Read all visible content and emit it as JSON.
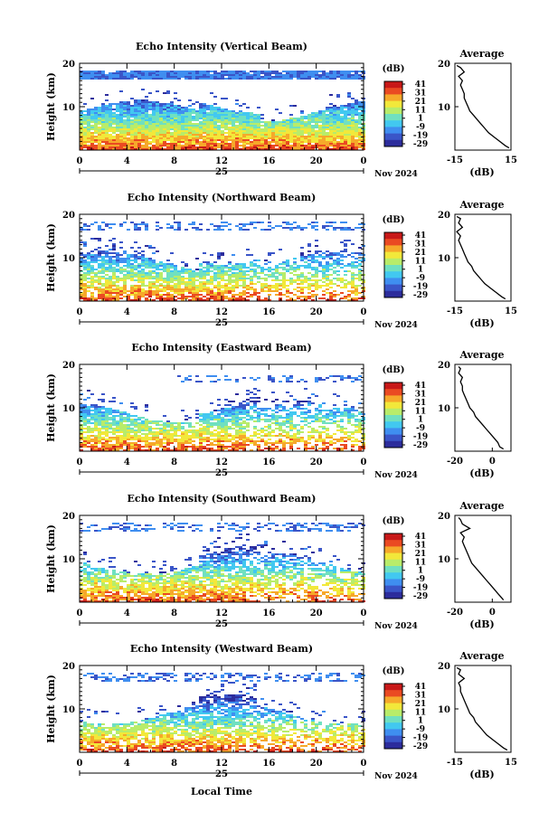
{
  "shared": {
    "x_ticks": [
      "0",
      "4",
      "8",
      "12",
      "16",
      "20",
      "0"
    ],
    "date_label": "25",
    "month_year": "Nov 2024",
    "y_label": "Height (km)",
    "y_ticks": [
      "20",
      "10"
    ],
    "colorbar_title": "(dB)",
    "colorbar_ticks": [
      "41",
      "31",
      "21",
      "11",
      "1",
      "-9",
      "-19",
      "-29"
    ],
    "avg_title": "Average",
    "avg_xlabel": "(dB)",
    "xlabel_bottom": "Local Time"
  },
  "colors": {
    "colormap": [
      "#2c2c9c",
      "#3a55c8",
      "#3f8ef0",
      "#42c8f0",
      "#70e0c0",
      "#b8ec6a",
      "#f2e83a",
      "#f6a82a",
      "#ea4a22",
      "#c81818"
    ]
  },
  "chart_data": [
    {
      "type": "heatmap",
      "title": "Echo Intensity (Vertical Beam)",
      "x_unit_hours": [
        0,
        24
      ],
      "ylim": [
        0,
        20
      ],
      "clim": [
        -29,
        41
      ],
      "avg_profile": {
        "xlim": [
          -15,
          15
        ],
        "x_ticks": [
          "-15",
          "15"
        ],
        "height_km": [
          0.5,
          1,
          2,
          3,
          4,
          5,
          6,
          7,
          8,
          9,
          10,
          11,
          12,
          13,
          14,
          15,
          16,
          17,
          18,
          19,
          19.5
        ],
        "values_db": [
          14,
          12,
          9,
          6,
          3,
          1,
          -1,
          -3,
          -5,
          -7,
          -8,
          -9,
          -10,
          -10,
          -11,
          -12,
          -11,
          -13,
          -10,
          -12,
          -14
        ]
      }
    },
    {
      "type": "heatmap",
      "title": "Echo Intensity (Northward Beam)",
      "x_unit_hours": [
        0,
        24
      ],
      "ylim": [
        0,
        20
      ],
      "clim": [
        -29,
        41
      ],
      "avg_profile": {
        "xlim": [
          -15,
          15
        ],
        "x_ticks": [
          "-15",
          "15"
        ],
        "height_km": [
          0.5,
          1,
          2,
          3,
          4,
          5,
          6,
          7,
          8,
          9,
          10,
          11,
          12,
          13,
          14,
          15,
          16,
          17,
          18,
          19,
          19.5
        ],
        "values_db": [
          12,
          10,
          7,
          4,
          1,
          -1,
          -3,
          -5,
          -6,
          -8,
          -9,
          -10,
          -11,
          -12,
          -13,
          -12,
          -14,
          -11,
          -13,
          -12,
          -14
        ]
      }
    },
    {
      "type": "heatmap",
      "title": "Echo Intensity (Eastward Beam)",
      "x_unit_hours": [
        0,
        24
      ],
      "ylim": [
        0,
        20
      ],
      "clim": [
        -29,
        41
      ],
      "avg_profile": {
        "xlim": [
          -20,
          10
        ],
        "x_ticks": [
          "-20",
          "0"
        ],
        "height_km": [
          0.5,
          1,
          2,
          3,
          4,
          5,
          6,
          7,
          8,
          9,
          10,
          11,
          12,
          13,
          14,
          15,
          16,
          17,
          18,
          19,
          19.5
        ],
        "values_db": [
          6,
          4,
          3,
          1,
          -1,
          -3,
          -5,
          -7,
          -9,
          -10,
          -12,
          -13,
          -14,
          -15,
          -16,
          -16,
          -17,
          -16,
          -18,
          -17,
          -18
        ]
      }
    },
    {
      "type": "heatmap",
      "title": "Echo Intensity (Southward Beam)",
      "x_unit_hours": [
        0,
        24
      ],
      "ylim": [
        0,
        20
      ],
      "clim": [
        -29,
        41
      ],
      "avg_profile": {
        "xlim": [
          -20,
          10
        ],
        "x_ticks": [
          "-20",
          "0"
        ],
        "height_km": [
          0.5,
          1,
          2,
          3,
          4,
          5,
          6,
          7,
          8,
          9,
          10,
          11,
          12,
          13,
          14,
          15,
          16,
          17,
          18,
          19,
          19.5
        ],
        "values_db": [
          6,
          5,
          3,
          1,
          -1,
          -3,
          -5,
          -7,
          -9,
          -11,
          -12,
          -13,
          -14,
          -15,
          -16,
          -15,
          -17,
          -12,
          -16,
          -17,
          -18
        ]
      }
    },
    {
      "type": "heatmap",
      "title": "Echo Intensity (Westward Beam)",
      "x_unit_hours": [
        0,
        24
      ],
      "ylim": [
        0,
        20
      ],
      "clim": [
        -29,
        41
      ],
      "avg_profile": {
        "xlim": [
          -15,
          15
        ],
        "x_ticks": [
          "-15",
          "15"
        ],
        "height_km": [
          0.5,
          1,
          2,
          3,
          4,
          5,
          6,
          7,
          8,
          9,
          10,
          11,
          12,
          13,
          14,
          15,
          16,
          17,
          18,
          19,
          19.5
        ],
        "values_db": [
          13,
          11,
          8,
          5,
          2,
          0,
          -2,
          -4,
          -5,
          -7,
          -8,
          -9,
          -10,
          -11,
          -12,
          -12,
          -13,
          -10,
          -13,
          -12,
          -14
        ]
      }
    }
  ]
}
